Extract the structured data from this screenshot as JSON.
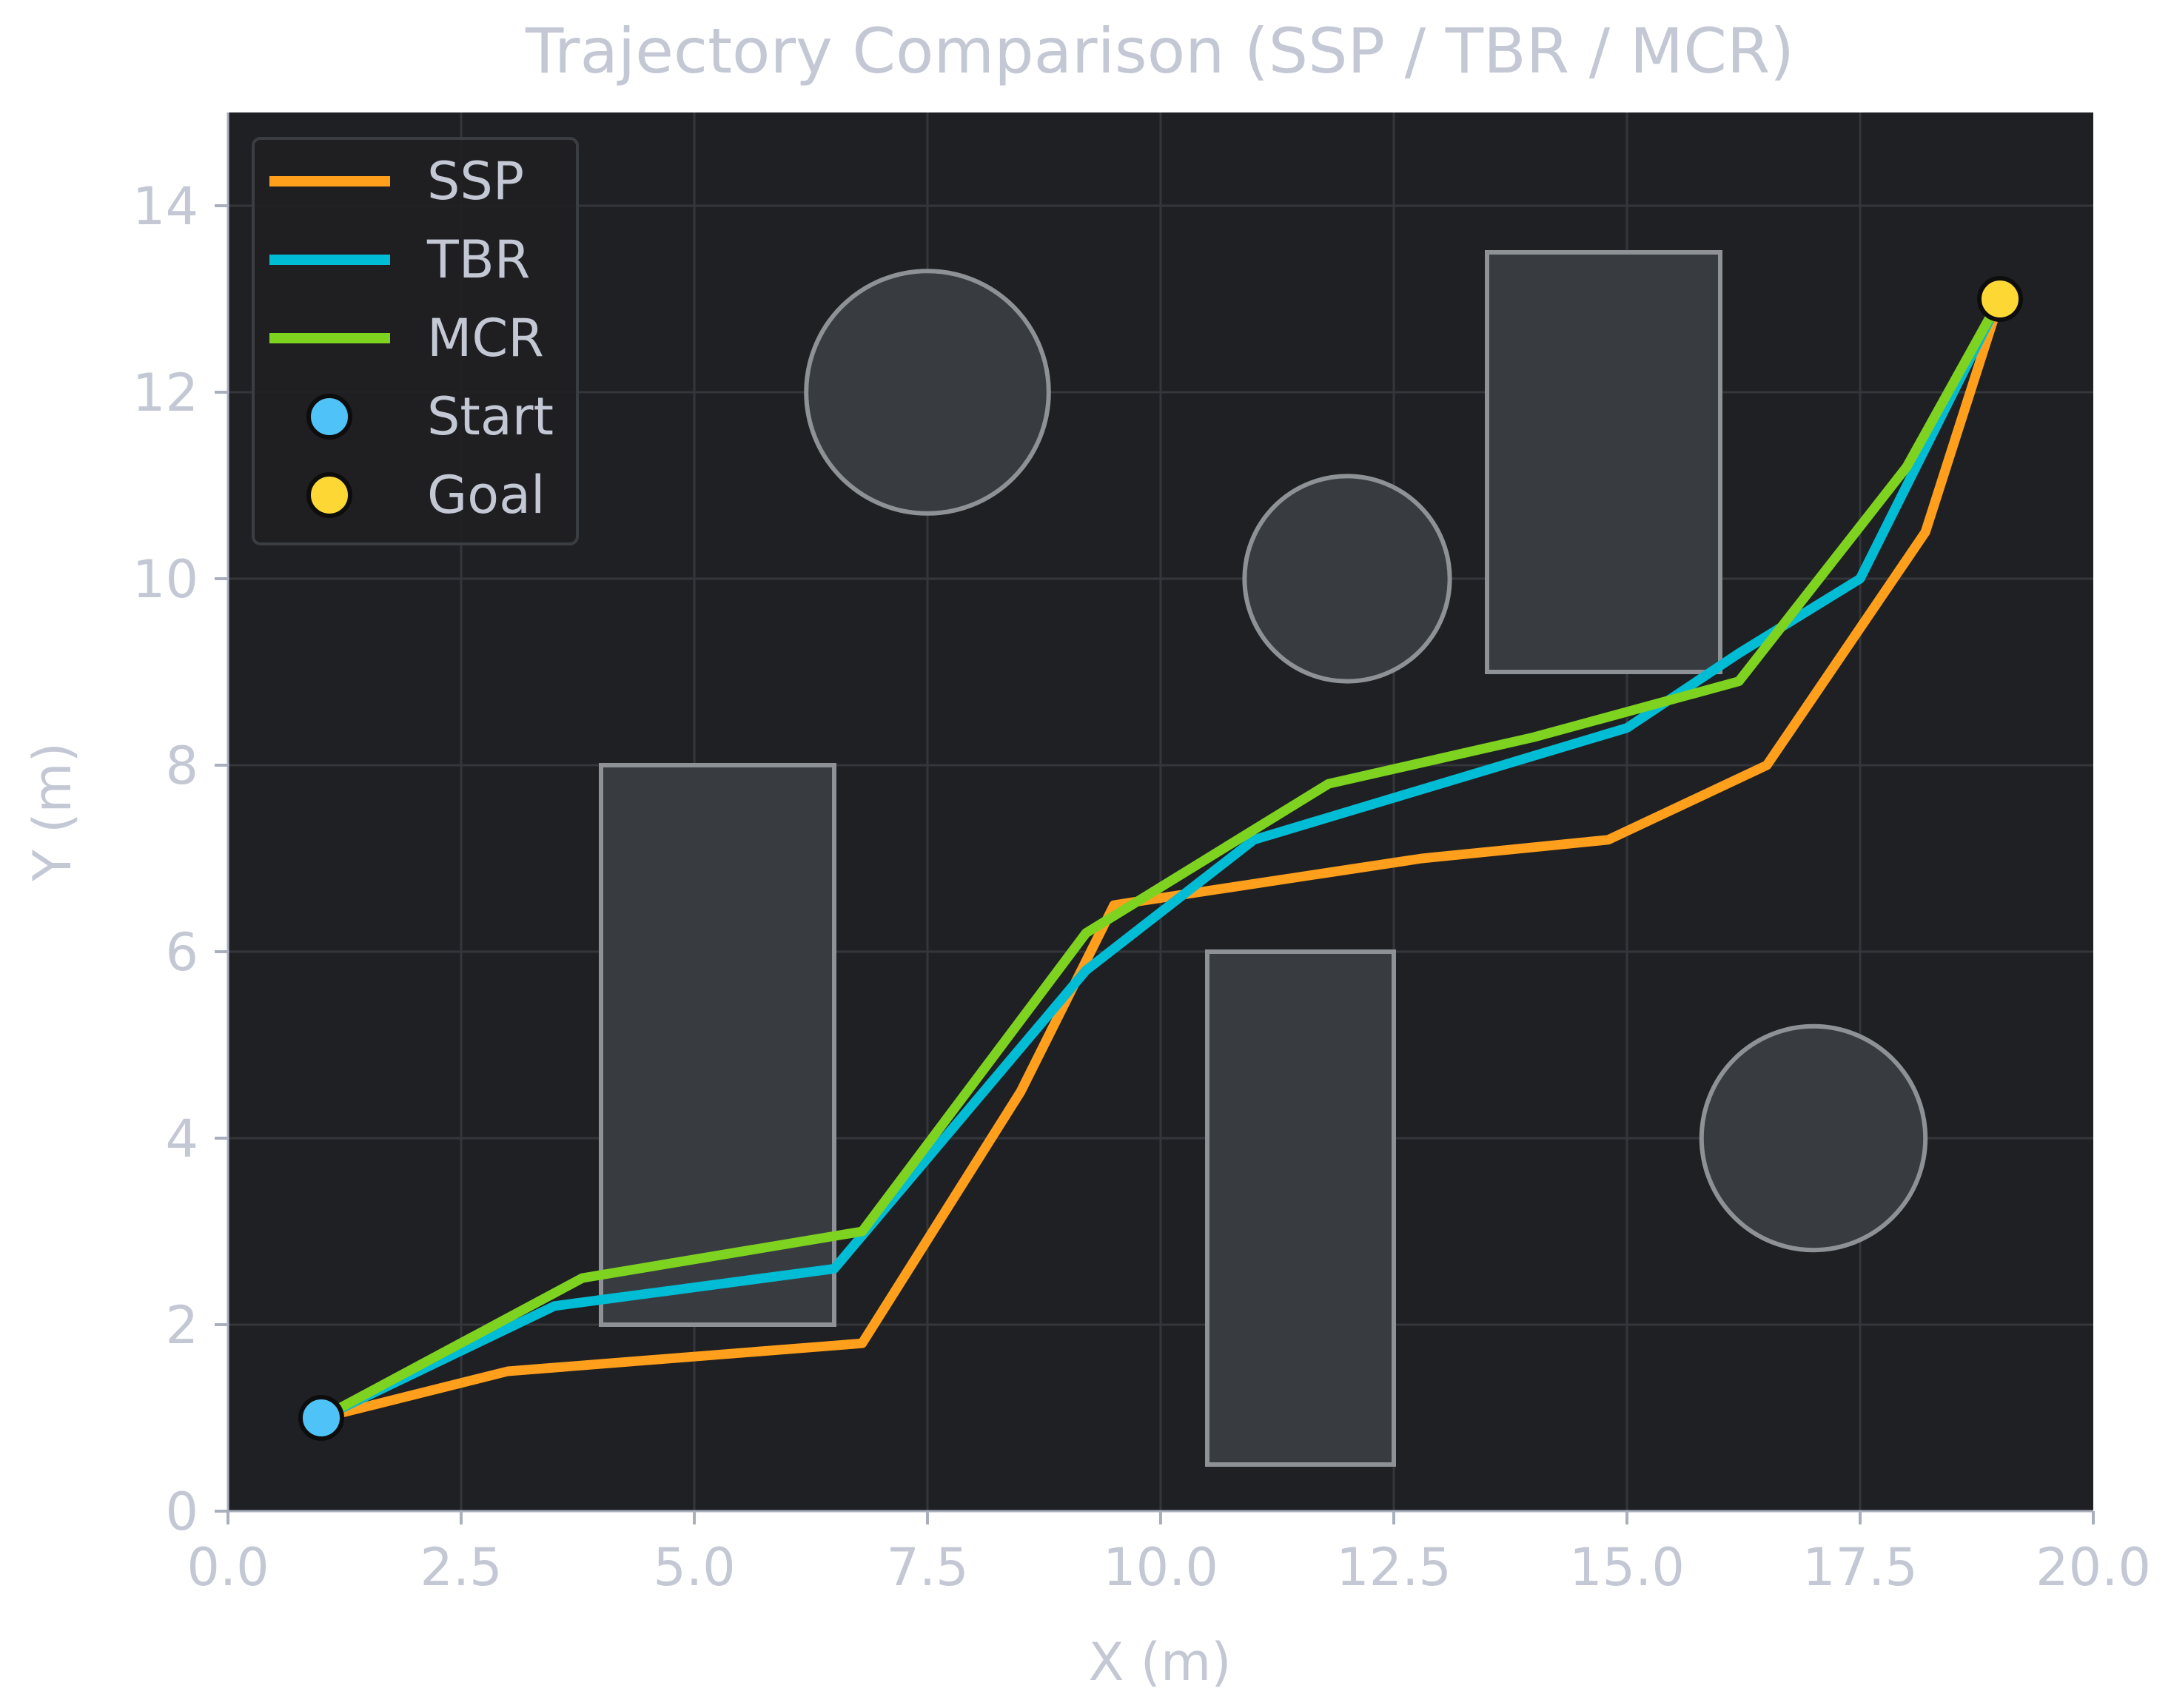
{
  "colors": {
    "page_background": "#ffffff",
    "plot_background": "#1f2023",
    "grid": "#34363b",
    "text": "#c3c8d4",
    "axis_text": "#a9afbd",
    "obstacle_fill": "#383c41",
    "obstacle_stroke": "#8e9297",
    "legend_bg": "#1f2023",
    "legend_border": "#3a3d42",
    "start": "#4fc3f7",
    "goal": "#fdd835",
    "marker_edge": "#0d0d0d"
  },
  "chart_data": {
    "type": "line",
    "title": "Trajectory Comparison (SSP / TBR / MCR)",
    "xlabel": "X (m)",
    "ylabel": "Y (m)",
    "xlim": [
      0,
      20
    ],
    "ylim": [
      0,
      15
    ],
    "grid": true,
    "legend_position": "top-left",
    "x_ticks": [
      0,
      2.5,
      5,
      7.5,
      10,
      12.5,
      15,
      17.5,
      20
    ],
    "x_tick_labels": [
      "0.0",
      "2.5",
      "5.0",
      "7.5",
      "10.0",
      "12.5",
      "15.0",
      "17.5",
      "20.0"
    ],
    "y_ticks": [
      0,
      2,
      4,
      6,
      8,
      10,
      12,
      14
    ],
    "y_tick_labels": [
      "0",
      "2",
      "4",
      "6",
      "8",
      "10",
      "12",
      "14"
    ],
    "obstacles": {
      "rectangles": [
        {
          "x0": 4.0,
          "y0": 2.0,
          "x1": 6.5,
          "y1": 8.0
        },
        {
          "x0": 10.5,
          "y0": 0.5,
          "x1": 12.5,
          "y1": 6.0
        },
        {
          "x0": 13.5,
          "y0": 9.0,
          "x1": 16.0,
          "y1": 13.5
        }
      ],
      "circles": [
        {
          "cx": 7.5,
          "cy": 12.0,
          "r": 1.3
        },
        {
          "cx": 12.0,
          "cy": 10.0,
          "r": 1.1
        },
        {
          "cx": 17.0,
          "cy": 4.0,
          "r": 1.2
        }
      ]
    },
    "series": [
      {
        "name": "SSP",
        "color": "#ff9f1c",
        "points": [
          [
            1.0,
            1.0
          ],
          [
            3.0,
            1.5
          ],
          [
            6.8,
            1.8
          ],
          [
            8.5,
            4.5
          ],
          [
            9.5,
            6.5
          ],
          [
            12.8,
            7.0
          ],
          [
            14.8,
            7.2
          ],
          [
            16.5,
            8.0
          ],
          [
            18.2,
            10.5
          ],
          [
            19.0,
            13.0
          ]
        ]
      },
      {
        "name": "TBR",
        "color": "#00bcd4",
        "points": [
          [
            1.0,
            1.0
          ],
          [
            3.5,
            2.2
          ],
          [
            6.5,
            2.6
          ],
          [
            9.2,
            5.8
          ],
          [
            11.0,
            7.2
          ],
          [
            15.0,
            8.4
          ],
          [
            16.2,
            9.2
          ],
          [
            17.5,
            10.0
          ],
          [
            19.0,
            13.0
          ]
        ]
      },
      {
        "name": "MCR",
        "color": "#7ed321",
        "points": [
          [
            1.0,
            1.0
          ],
          [
            3.8,
            2.5
          ],
          [
            6.8,
            3.0
          ],
          [
            9.2,
            6.2
          ],
          [
            11.8,
            7.8
          ],
          [
            14.0,
            8.3
          ],
          [
            16.2,
            8.9
          ],
          [
            18.0,
            11.2
          ],
          [
            19.0,
            13.0
          ]
        ]
      }
    ],
    "markers": [
      {
        "name": "Start",
        "x": 1.0,
        "y": 1.0,
        "color": "#4fc3f7"
      },
      {
        "name": "Goal",
        "x": 19.0,
        "y": 13.0,
        "color": "#fdd835"
      }
    ],
    "legend": [
      "SSP",
      "TBR",
      "MCR",
      "Start",
      "Goal"
    ]
  }
}
